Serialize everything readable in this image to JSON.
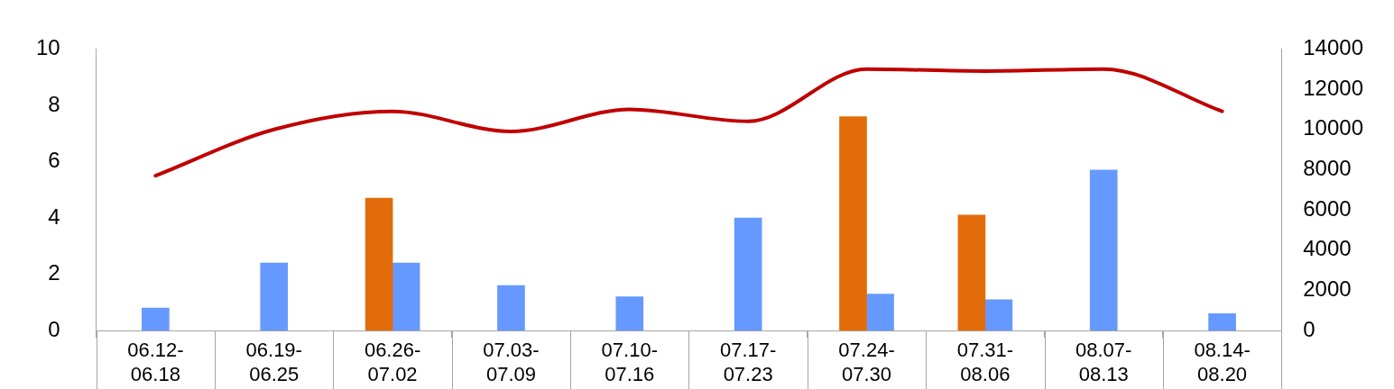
{
  "chart_data": {
    "type": "bar",
    "categories": [
      "06.12-06.18",
      "06.19-06.25",
      "06.26-07.02",
      "07.03-07.09",
      "07.10-07.16",
      "07.17-07.23",
      "07.24-07.30",
      "07.31-08.06",
      "08.07-08.13",
      "08.14-08.20"
    ],
    "series": [
      {
        "color": "#e36c0a",
        "values": [
          null,
          null,
          4.7,
          null,
          null,
          null,
          7.6,
          4.1,
          null,
          null
        ]
      },
      {
        "color": "#6699ff",
        "values": [
          0.8,
          2.4,
          2.4,
          1.6,
          1.2,
          4.0,
          1.3,
          1.1,
          5.7,
          0.6
        ]
      },
      {
        "type": "line",
        "axis": "y2",
        "color": "#c00000",
        "values": [
          7700,
          10000,
          10900,
          9900,
          11000,
          10400,
          13000,
          12900,
          13000,
          10900
        ]
      }
    ],
    "ylim": [
      0,
      10
    ],
    "yticks": [
      0,
      2,
      4,
      6,
      8,
      10
    ],
    "y2lim": [
      0,
      14000
    ],
    "y2ticks": [
      0,
      2000,
      4000,
      6000,
      8000,
      10000,
      12000,
      14000
    ],
    "marker": "none"
  }
}
